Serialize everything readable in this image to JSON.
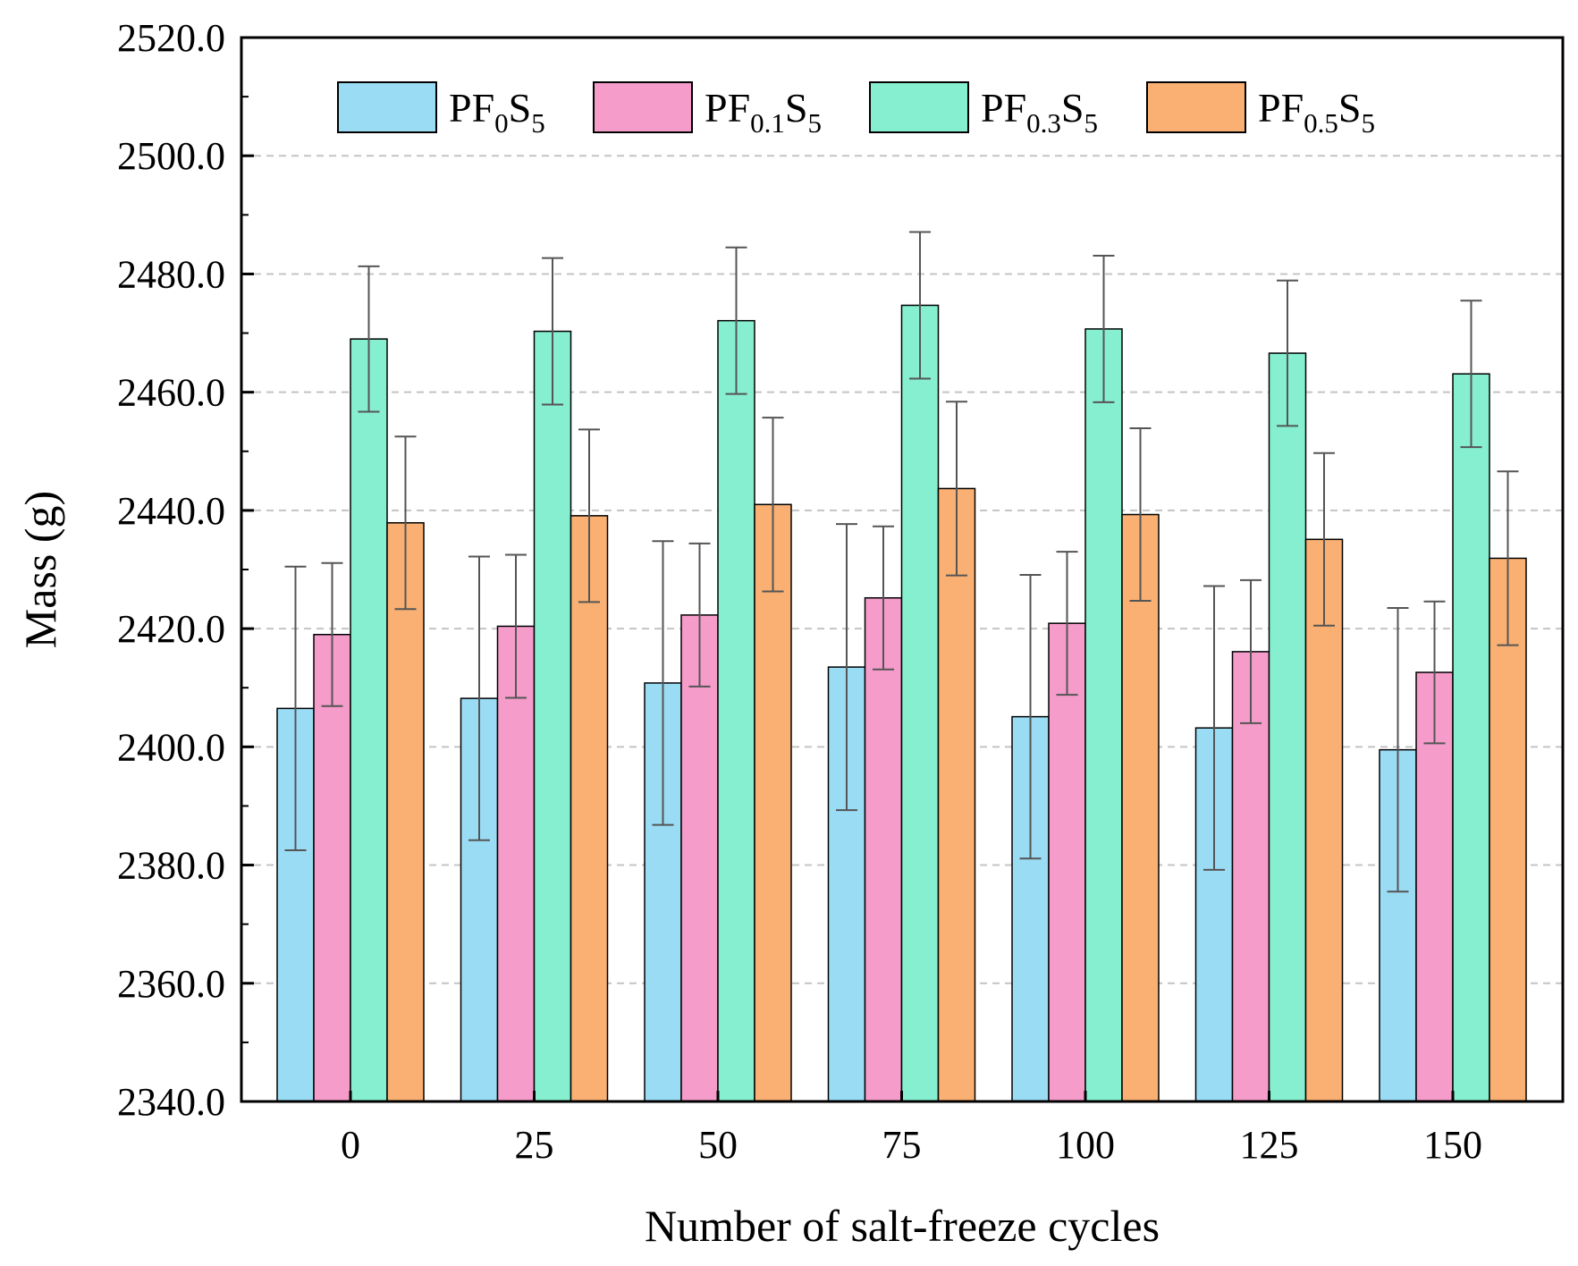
{
  "chart_data": {
    "type": "bar",
    "title": "",
    "xlabel": "Number of salt-freeze cycles",
    "ylabel": "Mass (g)",
    "categories": [
      "0",
      "25",
      "50",
      "75",
      "100",
      "125",
      "150"
    ],
    "ylim": [
      2340,
      2520
    ],
    "yticks": [
      "2340.0",
      "2360.0",
      "2380.0",
      "2400.0",
      "2420.0",
      "2440.0",
      "2460.0",
      "2480.0",
      "2500.0",
      "2520.0"
    ],
    "grid": "horizontal dashed",
    "legend": "top, horizontal",
    "series": [
      {
        "name": "PF0S5",
        "label": {
          "pre": "PF",
          "sub": "0",
          "mid": "S",
          "sub2": "5"
        },
        "color": "#9BDCF5",
        "values": [
          2406.5,
          2408.2,
          2410.8,
          2413.5,
          2405.1,
          2403.2,
          2399.5
        ],
        "errors": [
          24.0,
          24.0,
          24.0,
          24.2,
          24.0,
          24.0,
          24.0
        ]
      },
      {
        "name": "PF0.1S5",
        "label": {
          "pre": "PF",
          "sub": "0.1",
          "mid": "S",
          "sub2": "5"
        },
        "color": "#F59CCB",
        "values": [
          2419.0,
          2420.4,
          2422.3,
          2425.2,
          2420.9,
          2416.1,
          2412.6
        ],
        "errors": [
          12.1,
          12.1,
          12.1,
          12.1,
          12.1,
          12.1,
          12.0
        ]
      },
      {
        "name": "PF0.3S5",
        "label": {
          "pre": "PF",
          "sub": "0.3",
          "mid": "S",
          "sub2": "5"
        },
        "color": "#86EFCF",
        "values": [
          2469.0,
          2470.3,
          2472.1,
          2474.7,
          2470.7,
          2466.6,
          2463.1
        ],
        "errors": [
          12.3,
          12.4,
          12.4,
          12.4,
          12.4,
          12.3,
          12.4
        ]
      },
      {
        "name": "PF0.5S5",
        "label": {
          "pre": "PF",
          "sub": "0.5",
          "mid": "S",
          "sub2": "5"
        },
        "color": "#F9B072",
        "values": [
          2437.9,
          2439.1,
          2441.0,
          2443.7,
          2439.3,
          2435.1,
          2431.9
        ],
        "errors": [
          14.6,
          14.6,
          14.7,
          14.7,
          14.6,
          14.6,
          14.7
        ]
      }
    ]
  }
}
